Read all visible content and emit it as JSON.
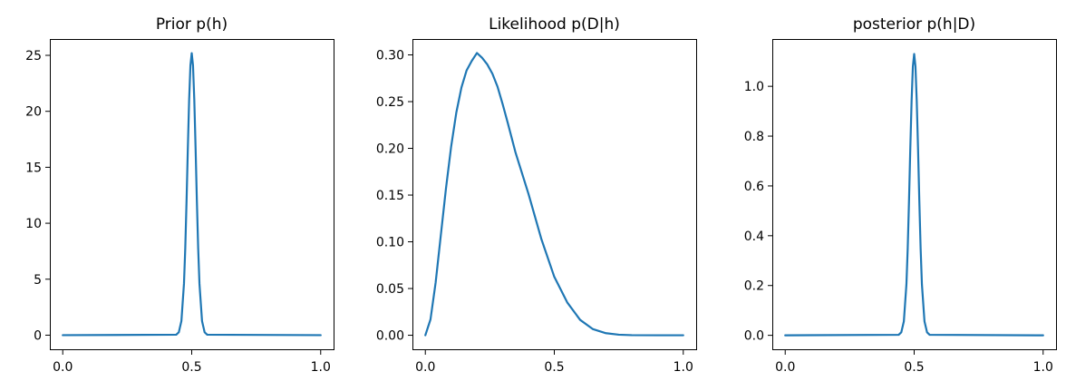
{
  "chart_data": [
    {
      "type": "line",
      "title": "Prior p(h)",
      "xlabel": "",
      "ylabel": "",
      "xlim": [
        -0.05,
        1.05
      ],
      "ylim": [
        -1.26,
        26.46
      ],
      "xticks": [
        0.0,
        0.5,
        1.0
      ],
      "xtick_labels": [
        "0.0",
        "0.5",
        "1.0"
      ],
      "yticks": [
        0,
        5,
        10,
        15,
        20,
        25
      ],
      "ytick_labels": [
        "0",
        "5",
        "10",
        "15",
        "20",
        "25"
      ],
      "grid": false,
      "legend": "none",
      "series": [
        {
          "color": "#1f77b4",
          "x": [
            0.0,
            0.44,
            0.45,
            0.46,
            0.47,
            0.475,
            0.48,
            0.485,
            0.49,
            0.495,
            0.5,
            0.505,
            0.51,
            0.515,
            0.52,
            0.525,
            0.53,
            0.54,
            0.55,
            0.56,
            1.0
          ],
          "y": [
            0.0,
            0.04,
            0.26,
            1.26,
            4.6,
            7.8,
            12.0,
            16.7,
            21.0,
            24.1,
            25.2,
            24.1,
            21.0,
            16.7,
            12.0,
            7.8,
            4.6,
            1.26,
            0.26,
            0.04,
            0.0
          ]
        }
      ]
    },
    {
      "type": "line",
      "title": "Likelihood p(D|h)",
      "xlabel": "",
      "ylabel": "",
      "xlim": [
        -0.05,
        1.05
      ],
      "ylim": [
        -0.015,
        0.317
      ],
      "xticks": [
        0.0,
        0.5,
        1.0
      ],
      "xtick_labels": [
        "0.0",
        "0.5",
        "1.0"
      ],
      "yticks": [
        0.0,
        0.05,
        0.1,
        0.15,
        0.2,
        0.25,
        0.3
      ],
      "ytick_labels": [
        "0.00",
        "0.05",
        "0.10",
        "0.15",
        "0.20",
        "0.25",
        "0.30"
      ],
      "grid": false,
      "legend": "none",
      "series": [
        {
          "color": "#1f77b4",
          "x": [
            0.0,
            0.02,
            0.04,
            0.06,
            0.08,
            0.1,
            0.12,
            0.14,
            0.16,
            0.18,
            0.2,
            0.22,
            0.24,
            0.26,
            0.28,
            0.3,
            0.32,
            0.35,
            0.4,
            0.45,
            0.5,
            0.55,
            0.6,
            0.65,
            0.7,
            0.75,
            0.8,
            0.9,
            1.0
          ],
          "y": [
            0.0,
            0.0169,
            0.0565,
            0.1069,
            0.1571,
            0.2017,
            0.2381,
            0.2651,
            0.2834,
            0.2936,
            0.302,
            0.2969,
            0.2899,
            0.2799,
            0.2659,
            0.2471,
            0.2268,
            0.1952,
            0.1512,
            0.1028,
            0.0625,
            0.0352,
            0.0165,
            0.0065,
            0.0022,
            0.0006,
            0.0001,
            0.0,
            0.0
          ]
        }
      ]
    },
    {
      "type": "line",
      "title": "posterior p(h|D)",
      "xlabel": "",
      "ylabel": "",
      "xlim": [
        -0.05,
        1.05
      ],
      "ylim": [
        -0.056,
        1.19
      ],
      "xticks": [
        0.0,
        0.5,
        1.0
      ],
      "xtick_labels": [
        "0.0",
        "0.5",
        "1.0"
      ],
      "yticks": [
        0.0,
        0.2,
        0.4,
        0.6,
        0.8,
        1.0
      ],
      "ytick_labels": [
        "0.0",
        "0.2",
        "0.4",
        "0.6",
        "0.8",
        "1.0"
      ],
      "grid": false,
      "legend": "none",
      "series": [
        {
          "color": "#1f77b4",
          "x": [
            0.0,
            0.44,
            0.45,
            0.46,
            0.47,
            0.475,
            0.48,
            0.485,
            0.49,
            0.495,
            0.5,
            0.505,
            0.51,
            0.515,
            0.52,
            0.525,
            0.53,
            0.54,
            0.55,
            0.56,
            1.0
          ],
          "y": [
            0.0,
            0.002,
            0.012,
            0.056,
            0.205,
            0.35,
            0.54,
            0.75,
            0.94,
            1.08,
            1.13,
            1.08,
            0.94,
            0.75,
            0.54,
            0.35,
            0.205,
            0.056,
            0.012,
            0.002,
            0.0
          ]
        }
      ]
    }
  ]
}
